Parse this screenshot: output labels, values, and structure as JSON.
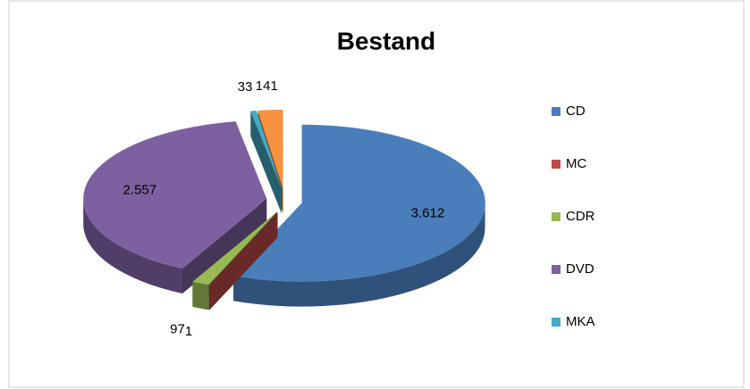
{
  "chart_data": {
    "type": "pie",
    "title": "Bestand",
    "categories": [
      "CD",
      "MC",
      "CDR",
      "DVD",
      "MKA",
      null
    ],
    "values": [
      3612,
      1,
      97,
      2557,
      33,
      141
    ],
    "value_labels": [
      "3.612",
      "1",
      "97",
      "2.557",
      "33",
      "141"
    ],
    "colors": [
      "#4a7ebb",
      "#be4b48",
      "#98b954",
      "#7d60a0",
      "#46aac5",
      "#f69240"
    ],
    "legend": "right"
  }
}
